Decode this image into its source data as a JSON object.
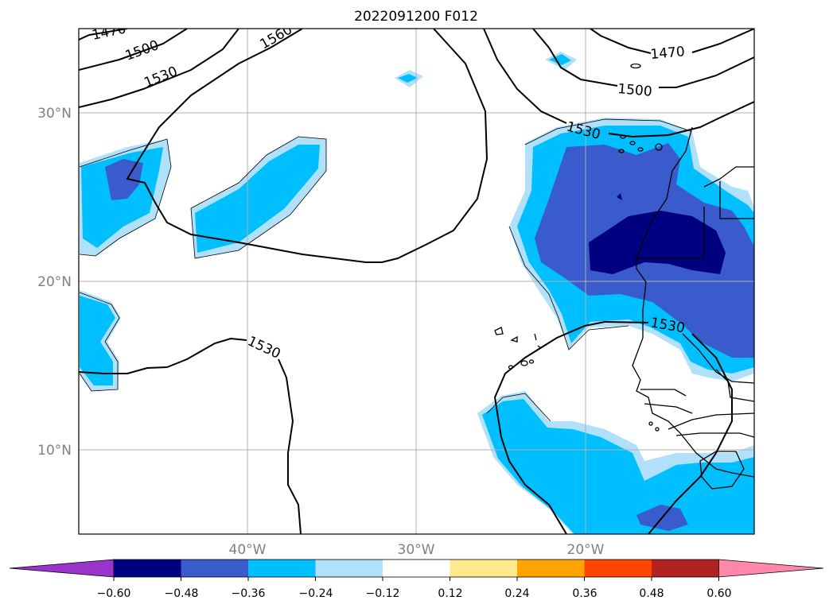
{
  "title": "2022091200 F012",
  "lat_labels": [
    "30°N",
    "20°N",
    "10°N"
  ],
  "lon_labels": [
    "40°W",
    "30°W",
    "20°W"
  ],
  "contour_labels": [
    "1470",
    "1500",
    "1530",
    "1560",
    "1470",
    "1500",
    "1530",
    "1530",
    "1530"
  ],
  "colorbar": {
    "ticks": [
      "−0.60",
      "−0.48",
      "−0.36",
      "−0.24",
      "−0.12",
      "0.12",
      "0.24",
      "0.36",
      "0.48",
      "0.60"
    ],
    "colors": [
      "#9933cc",
      "#000080",
      "#3a5bcc",
      "#00bfff",
      "#b0e0fa",
      "#ffffff",
      "#ffe98f",
      "#ffa500",
      "#ff4500",
      "#b22222",
      "#ff88aa"
    ]
  },
  "fill_colors": {
    "light": "#b0e0fa",
    "medium": "#00bfff",
    "dark": "#3a5bcc",
    "darkest": "#000080"
  }
}
